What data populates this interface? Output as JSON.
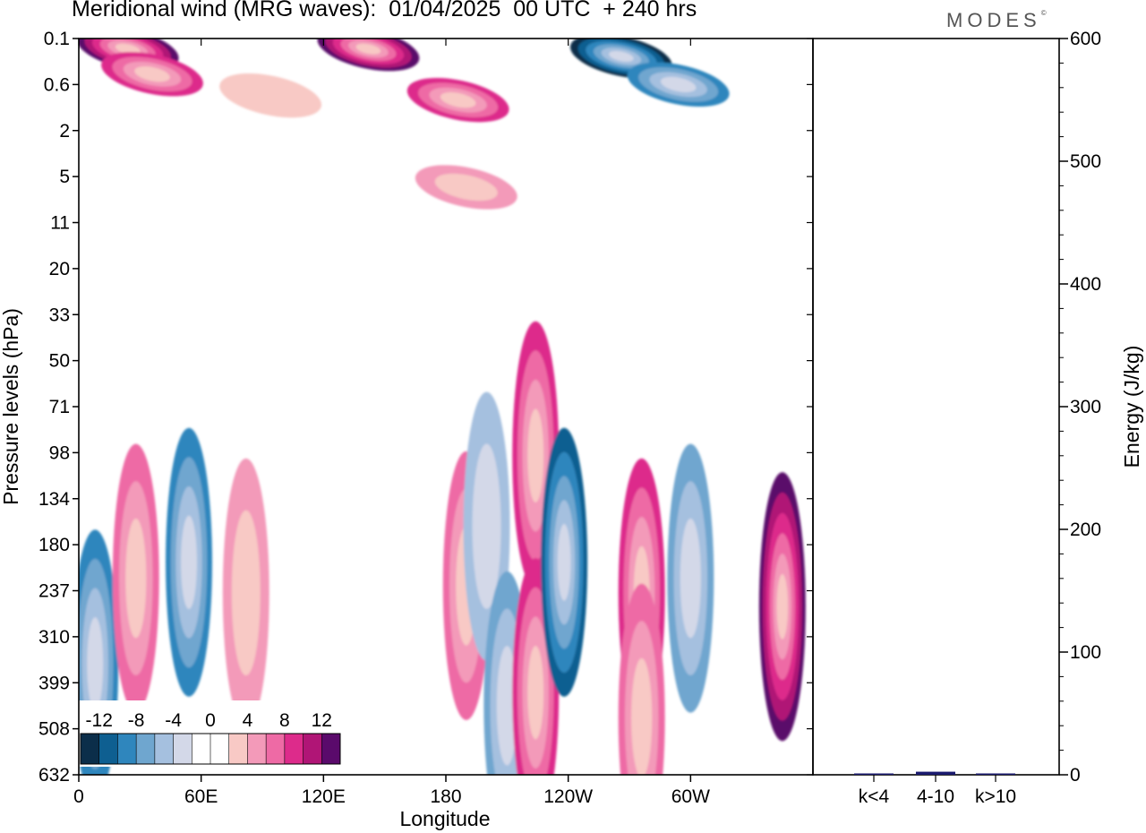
{
  "title": "Meridional wind (MRG waves):  01/04/2025  00 UTC  + 240 hrs",
  "brand": "MODES",
  "brand_mark": "©",
  "chart_data": [
    {
      "type": "heatmap",
      "title": "Meridional wind (MRG waves):  01/04/2025  00 UTC  + 240 hrs",
      "xlabel": "Longitude",
      "ylabel": "Pressure levels (hPa)",
      "x_ticks": [
        "0",
        "60E",
        "120E",
        "180",
        "120W",
        "60W"
      ],
      "x_range_deg": [
        0,
        360
      ],
      "y_ticks": [
        "0.1",
        "0.6",
        "2",
        "5",
        "11",
        "20",
        "33",
        "50",
        "71",
        "98",
        "134",
        "180",
        "237",
        "310",
        "399",
        "508",
        "632"
      ],
      "colorbar_labels": [
        "-12",
        "-8",
        "-4",
        "0",
        "4",
        "8",
        "12"
      ],
      "colorbar_colors": [
        "#0b2e4a",
        "#0e5f91",
        "#2f86bd",
        "#6fa6cf",
        "#a5c0df",
        "#d3d8e8",
        "#ffffff",
        "#ffffff",
        "#f8c9c5",
        "#f39ab9",
        "#ee6aa5",
        "#dd2b8b",
        "#b01576",
        "#5a0a6b"
      ],
      "features": [
        {
          "lon": 8,
          "level": 360,
          "value": -8
        },
        {
          "lon": 24,
          "level": 0.15,
          "value": 12
        },
        {
          "lon": 36,
          "level": 0.4,
          "value": 8
        },
        {
          "lon": 28,
          "level": 220,
          "value": 6
        },
        {
          "lon": 54,
          "level": 200,
          "value": -8
        },
        {
          "lon": 82,
          "level": 240,
          "value": 4
        },
        {
          "lon": 94,
          "level": 0.8,
          "value": 2
        },
        {
          "lon": 142,
          "level": 0.15,
          "value": 12
        },
        {
          "lon": 186,
          "level": 0.9,
          "value": 8
        },
        {
          "lon": 190,
          "level": 6,
          "value": 5
        },
        {
          "lon": 190,
          "level": 230,
          "value": 7
        },
        {
          "lon": 200,
          "level": 160,
          "value": -5
        },
        {
          "lon": 210,
          "level": 450,
          "value": -6
        },
        {
          "lon": 224,
          "level": 100,
          "value": 8
        },
        {
          "lon": 224,
          "level": 420,
          "value": 9
        },
        {
          "lon": 238,
          "level": 200,
          "value": -10
        },
        {
          "lon": 266,
          "level": 0.2,
          "value": -12
        },
        {
          "lon": 294,
          "level": 0.6,
          "value": -9
        },
        {
          "lon": 276,
          "level": 240,
          "value": 8
        },
        {
          "lon": 276,
          "level": 480,
          "value": 7
        },
        {
          "lon": 300,
          "level": 220,
          "value": -7
        },
        {
          "lon": 345,
          "level": 260,
          "value": 12
        }
      ]
    },
    {
      "type": "bar",
      "ylabel": "Energy (J/kg)",
      "categories": [
        "k<4",
        "4-10",
        "k>10"
      ],
      "values": [
        0.3,
        2.5,
        0.2
      ],
      "ylim": [
        0,
        600
      ],
      "y_ticks": [
        "0",
        "100",
        "200",
        "300",
        "400",
        "500",
        "600"
      ],
      "bar_color": "#1a1a6e"
    }
  ]
}
